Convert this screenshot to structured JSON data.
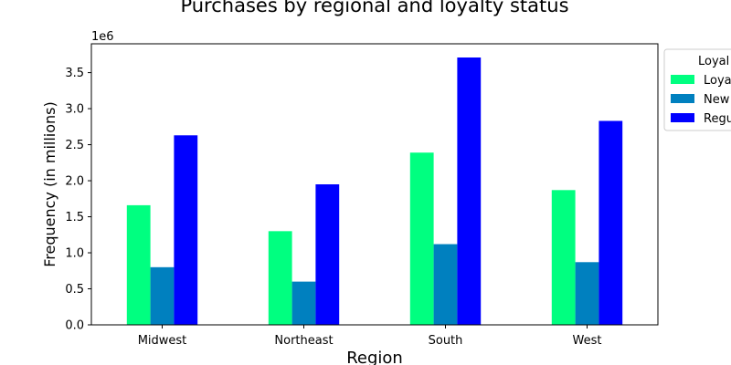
{
  "chart_data": {
    "type": "bar",
    "title": "Purchases by regional and loyalty status",
    "xlabel": "Region",
    "ylabel": "Frequency (in millions)",
    "offset_text": "1e6",
    "categories": [
      "Midwest",
      "Northeast",
      "South",
      "West"
    ],
    "ylim": [
      0,
      3900000
    ],
    "yticks": [
      0,
      500000,
      1000000,
      1500000,
      2000000,
      2500000,
      3000000,
      3500000
    ],
    "ytick_labels": [
      "0.0",
      "0.5",
      "1.0",
      "1.5",
      "2.0",
      "2.5",
      "3.0",
      "3.5"
    ],
    "legend": {
      "title": "Loyal",
      "placement": "outside upper right"
    },
    "series": [
      {
        "name": "Loya",
        "color": "#00ff80",
        "values": [
          1660000,
          1300000,
          2390000,
          1870000
        ]
      },
      {
        "name": "New",
        "color": "#0080bf",
        "values": [
          800000,
          600000,
          1120000,
          870000
        ]
      },
      {
        "name": "Regu",
        "color": "#0000ff",
        "values": [
          2630000,
          1950000,
          3710000,
          2830000
        ]
      }
    ],
    "grid": false
  }
}
